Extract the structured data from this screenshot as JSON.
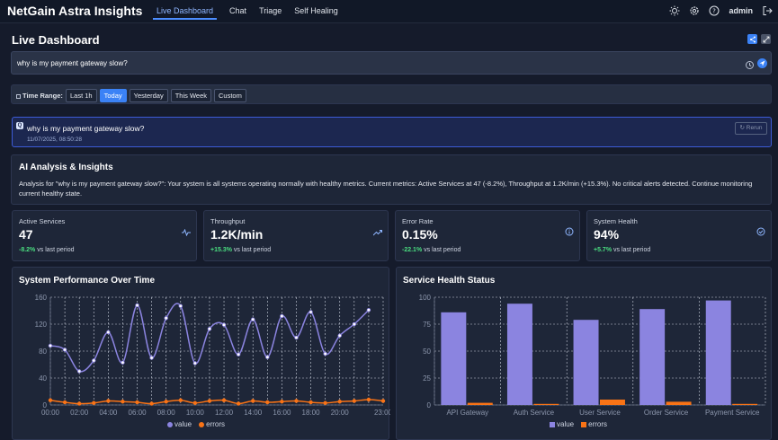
{
  "app": {
    "title": "NetGain Astra Insights",
    "user": "admin"
  },
  "nav": {
    "tabs": [
      "Live Dashboard",
      "Chat",
      "Triage",
      "Self Healing"
    ],
    "active": 0
  },
  "page": {
    "title": "Live Dashboard"
  },
  "search": {
    "value": "why is my payment gateway slow?"
  },
  "time_range": {
    "label": "Time Range:",
    "options": [
      "Last 1h",
      "Today",
      "Yesterday",
      "This Week",
      "Custom"
    ],
    "selected": "Today"
  },
  "conversation": {
    "question": "why is my payment gateway slow?",
    "timestamp": "11/07/2025, 08:50:28",
    "rerun_label": "Rerun"
  },
  "ai": {
    "title": "AI Analysis & Insights",
    "text": "Analysis for \"why is my payment gateway slow?\": Your system is all systems operating normally with healthy metrics. Current metrics: Active Services at 47 (-8.2%), Throughput at 1.2K/min (+15.3%). No critical alerts detected. Continue monitoring current healthy state."
  },
  "metrics": [
    {
      "label": "Active Services",
      "value": "47",
      "delta": "-8.2%",
      "suffix": "vs last period",
      "icon": "activity-icon"
    },
    {
      "label": "Throughput",
      "value": "1.2K/min",
      "delta": "+15.3%",
      "suffix": "vs last period",
      "icon": "trending-up-icon"
    },
    {
      "label": "Error Rate",
      "value": "0.15%",
      "delta": "-22.1%",
      "suffix": "vs last period",
      "icon": "info-icon"
    },
    {
      "label": "System Health",
      "value": "94%",
      "delta": "+5.7%",
      "suffix": "vs last period",
      "icon": "check-circle-icon"
    }
  ],
  "colors": {
    "accent": "#3b82f6",
    "value_series": "#8b84e0",
    "errors_series": "#f97316",
    "positive": "#4ade80"
  },
  "chart_data": [
    {
      "type": "line",
      "title": "System Performance Over Time",
      "x": [
        "00:00",
        "01:00",
        "02:00",
        "03:00",
        "04:00",
        "05:00",
        "06:00",
        "07:00",
        "08:00",
        "09:00",
        "10:00",
        "11:00",
        "12:00",
        "13:00",
        "14:00",
        "15:00",
        "16:00",
        "17:00",
        "18:00",
        "19:00",
        "20:00",
        "21:00",
        "22:00",
        "23:00"
      ],
      "xticks": [
        "00:00",
        "02:00",
        "04:00",
        "06:00",
        "08:00",
        "10:00",
        "12:00",
        "14:00",
        "16:00",
        "18:00",
        "20:00",
        "23:00"
      ],
      "series": [
        {
          "name": "value",
          "values": [
            88,
            82,
            50,
            66,
            108,
            63,
            148,
            70,
            129,
            147,
            62,
            113,
            119,
            75,
            127,
            71,
            132,
            100,
            138,
            76,
            103,
            120,
            141,
            null
          ]
        },
        {
          "name": "errors",
          "values": [
            7,
            4,
            2,
            3,
            6,
            5,
            4,
            2,
            5,
            7,
            3,
            6,
            7,
            2,
            6,
            4,
            5,
            6,
            4,
            3,
            5,
            6,
            8,
            6
          ]
        }
      ],
      "ylim": [
        0,
        160
      ],
      "yticks": [
        0,
        40,
        80,
        120,
        160
      ],
      "grid": true,
      "legend": "bottom"
    },
    {
      "type": "bar",
      "title": "Service Health Status",
      "categories": [
        "API Gateway",
        "Auth Service",
        "User Service",
        "Order Service",
        "Payment Service"
      ],
      "series": [
        {
          "name": "value",
          "values": [
            86,
            94,
            79,
            89,
            97
          ]
        },
        {
          "name": "errors",
          "values": [
            2,
            1,
            5,
            3,
            1
          ]
        }
      ],
      "ylim": [
        0,
        100
      ],
      "yticks": [
        0,
        25,
        50,
        75,
        100
      ],
      "grid": true,
      "legend": "bottom"
    }
  ]
}
